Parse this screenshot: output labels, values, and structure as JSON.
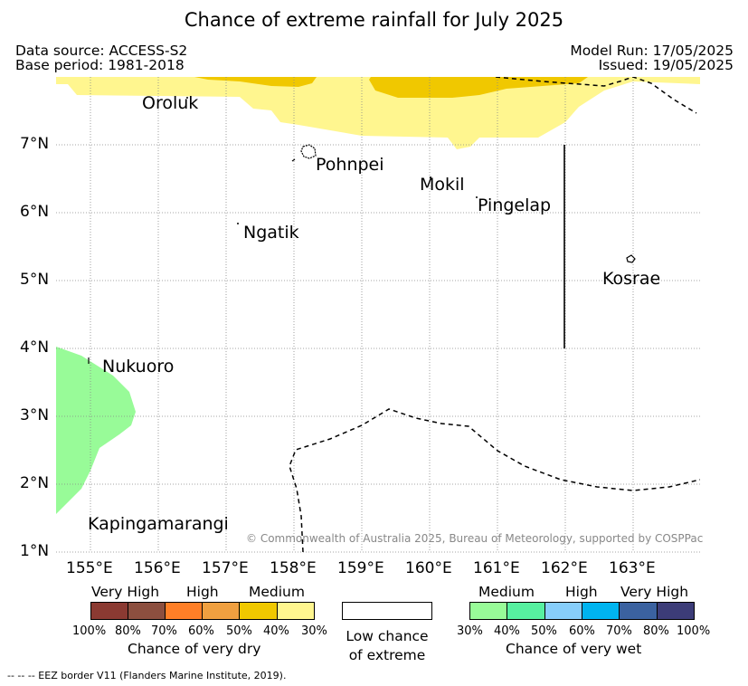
{
  "title": "Chance of extreme rainfall for July 2025",
  "meta": {
    "data_source": "Data source: ACCESS-S2",
    "base_period": "Base period: 1981-2018",
    "model_run": "Model Run: 17/05/2025",
    "issued": "Issued: 19/05/2025"
  },
  "axes": {
    "x_ticks": [
      "155°E",
      "156°E",
      "157°E",
      "158°E",
      "159°E",
      "160°E",
      "161°E",
      "162°E",
      "163°E"
    ],
    "y_ticks": [
      "7°N",
      "6°N",
      "5°N",
      "4°N",
      "3°N",
      "2°N",
      "1°N"
    ]
  },
  "places": {
    "oroluk": "Oroluk",
    "pohnpei": "Pohnpei",
    "mokil": "Mokil",
    "pingelap": "Pingelap",
    "ngatik": "Ngatik",
    "kosrae": "Kosrae",
    "nukuoro": "Nukuoro",
    "kapingamarangi": "Kapingamarangi"
  },
  "copyright": "© Commonwealth of Australia 2025, Bureau of Meteorology, supported by COSPPac",
  "legend": {
    "dry": {
      "groups": [
        "Very High",
        "High",
        "Medium"
      ],
      "colors": [
        "#8b3a32",
        "#8c4f3f",
        "#ff7f27",
        "#f0a040",
        "#f0c800",
        "#fff68f"
      ],
      "labels": [
        "100%",
        "80%",
        "70%",
        "60%",
        "50%",
        "40%",
        "30%"
      ],
      "caption": "Chance of very dry"
    },
    "neutral": {
      "color": "#ffffff",
      "caption_line1": "Low chance",
      "caption_line2": "of extreme"
    },
    "wet": {
      "groups": [
        "Medium",
        "High",
        "Very High"
      ],
      "colors": [
        "#98fb98",
        "#57f0a0",
        "#87cefa",
        "#00b4f0",
        "#3b62a0",
        "#3c3c78"
      ],
      "labels": [
        "30%",
        "40%",
        "50%",
        "60%",
        "70%",
        "80%",
        "100%"
      ],
      "caption": "Chance of very wet"
    }
  },
  "footnote": "-- -- -- EEZ border V11 (Flanders Marine Institute, 2019)."
}
